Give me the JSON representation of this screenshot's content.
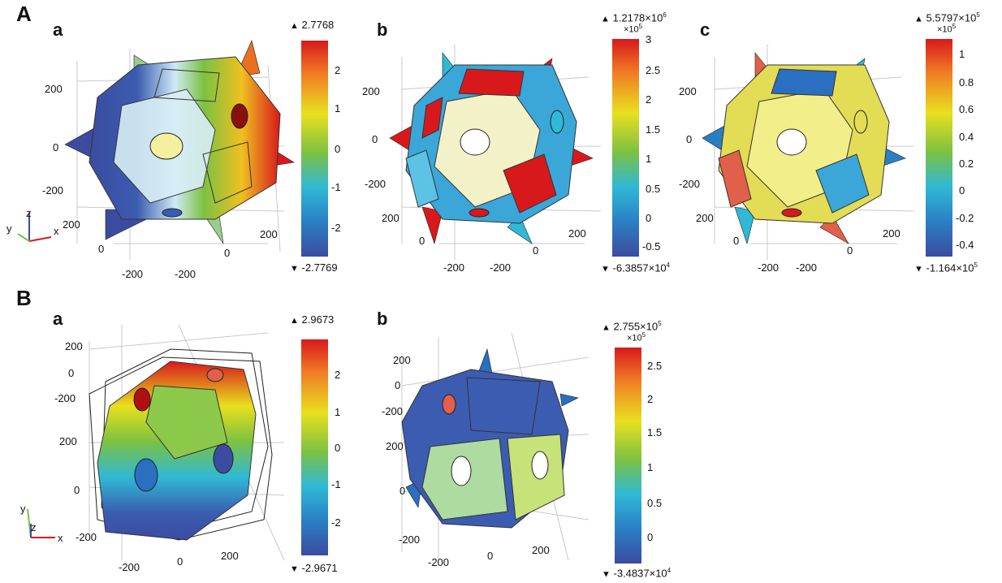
{
  "sections": [
    "A",
    "B"
  ],
  "panels": {
    "Aa": {
      "label": "a",
      "max": "2.7768",
      "min": "-2.7769",
      "multiplier": "",
      "cbar_ticks": [
        "2",
        "1",
        "0",
        "-1",
        "-2"
      ],
      "axis_ticks": [
        "200",
        "0",
        "-200",
        "200",
        "0",
        "-200",
        "200",
        "0"
      ]
    },
    "Ab": {
      "label": "b",
      "max": "1.2178×10",
      "max_exp": "6",
      "min": "-6.3857×10",
      "min_exp": "4",
      "multiplier": "×10",
      "multiplier_exp": "5",
      "cbar_ticks": [
        "3",
        "2.5",
        "2",
        "1.5",
        "1",
        "0.5",
        "0",
        "-0.5"
      ],
      "axis_ticks": [
        "200",
        "0",
        "-200",
        "200",
        "0",
        "-200",
        "-200",
        "200",
        "0"
      ]
    },
    "Ac": {
      "label": "c",
      "max": "5.5797×10",
      "max_exp": "5",
      "min": "-1.164×10",
      "min_exp": "5",
      "multiplier": "×10",
      "multiplier_exp": "5",
      "cbar_ticks": [
        "1",
        "0.8",
        "0.6",
        "0.4",
        "0.2",
        "0",
        "-0.2",
        "-0.4"
      ],
      "axis_ticks": [
        "200",
        "0",
        "-200",
        "200",
        "0",
        "-200",
        "-200",
        "200",
        "0"
      ]
    },
    "Ba": {
      "label": "a",
      "max": "2.9673",
      "min": "-2.9671",
      "multiplier": "",
      "cbar_ticks": [
        "2",
        "1",
        "0",
        "-1",
        "-2"
      ],
      "axis_ticks": [
        "200",
        "0",
        "-200",
        "200",
        "0",
        "-200",
        "-200",
        "0",
        "200"
      ]
    },
    "Bb": {
      "label": "b",
      "max": "2.755×10",
      "max_exp": "5",
      "min": "-3.4837×10",
      "min_exp": "4",
      "multiplier": "×10",
      "multiplier_exp": "5",
      "cbar_ticks": [
        "2.5",
        "2",
        "1.5",
        "1",
        "0.5",
        "0"
      ],
      "axis_ticks": [
        "200",
        "0",
        "-200",
        "200",
        "0",
        "-200",
        "0",
        "200"
      ]
    }
  },
  "triad": {
    "A": {
      "z": "z",
      "y": "y",
      "x": "x"
    },
    "B": {
      "y": "y",
      "z": "z",
      "x": "x"
    }
  },
  "colors": {
    "red": "#d7191c",
    "orange": "#f07a24",
    "yellow": "#e8e01e",
    "green": "#7cc142",
    "cyan": "#2fb9d6",
    "blue": "#2a7fc4",
    "darkblue": "#3b4ca0"
  }
}
